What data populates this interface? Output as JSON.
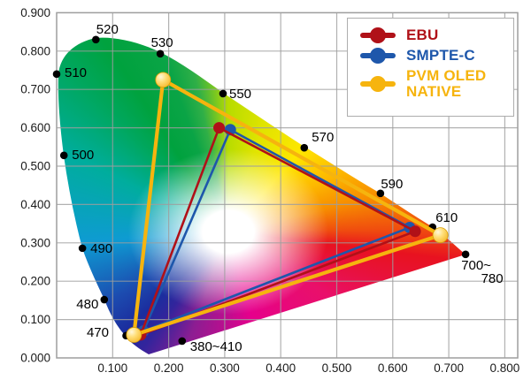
{
  "chart_data": {
    "type": "scatter",
    "title": "CIE 1931 xy chromaticity diagram with colour gamut triangles",
    "xlabel": "",
    "ylabel": "",
    "xlim": [
      0.0,
      0.823
    ],
    "ylim": [
      0.0,
      0.9
    ],
    "grid": true,
    "legend_position": "top-right",
    "x_ticks": [
      0.1,
      0.2,
      0.3,
      0.4,
      0.5,
      0.6,
      0.7,
      0.8
    ],
    "y_ticks": [
      0.0,
      0.1,
      0.2,
      0.3,
      0.4,
      0.5,
      0.6,
      0.7,
      0.8,
      0.9
    ],
    "x_tick_labels": [
      "0.100",
      "0.200",
      "0.300",
      "0.400",
      "0.500",
      "0.600",
      "0.700",
      "0.800"
    ],
    "y_tick_labels": [
      "0.000",
      "0.100",
      "0.200",
      "0.300",
      "0.400",
      "0.500",
      "0.600",
      "0.700",
      "0.800",
      "0.900"
    ],
    "series": [
      {
        "name": "EBU",
        "color": "#b01118",
        "marker": "circle",
        "closed": true,
        "points": [
          [
            0.64,
            0.33
          ],
          [
            0.29,
            0.6
          ],
          [
            0.15,
            0.06
          ]
        ]
      },
      {
        "name": "SMPTE-C",
        "color": "#1e57ab",
        "marker": "circle",
        "closed": true,
        "points": [
          [
            0.63,
            0.34
          ],
          [
            0.31,
            0.595
          ],
          [
            0.155,
            0.07
          ]
        ]
      },
      {
        "name": "PVM OLED NATIVE",
        "color": "#f6b40e",
        "marker": "ball",
        "closed": true,
        "points": [
          [
            0.685,
            0.32
          ],
          [
            0.19,
            0.725
          ],
          [
            0.138,
            0.06
          ]
        ]
      }
    ],
    "spectral_locus_points": [
      {
        "label": "380~410",
        "x": 0.224,
        "y": 0.044,
        "lines": [
          "380~410"
        ]
      },
      {
        "label": "470",
        "x": 0.124,
        "y": 0.058,
        "dot_hidden": true,
        "lines": [
          "470"
        ]
      },
      {
        "label": "480",
        "x": 0.085,
        "y": 0.152,
        "lines": [
          "480"
        ]
      },
      {
        "label": "490",
        "x": 0.046,
        "y": 0.286,
        "lines": [
          "490"
        ]
      },
      {
        "label": "500",
        "x": 0.013,
        "y": 0.528,
        "lines": [
          "500"
        ]
      },
      {
        "label": "510",
        "x": 0.0,
        "y": 0.74,
        "lines": [
          "510"
        ]
      },
      {
        "label": "520",
        "x": 0.07,
        "y": 0.83,
        "lines": [
          "520"
        ]
      },
      {
        "label": "530",
        "x": 0.185,
        "y": 0.793,
        "lines": [
          "530"
        ]
      },
      {
        "label": "550",
        "x": 0.297,
        "y": 0.689,
        "lines": [
          "550"
        ]
      },
      {
        "label": "570",
        "x": 0.442,
        "y": 0.548,
        "lines": [
          "570"
        ]
      },
      {
        "label": "590",
        "x": 0.578,
        "y": 0.429,
        "lines": [
          "590"
        ]
      },
      {
        "label": "610",
        "x": 0.671,
        "y": 0.341,
        "lines": [
          "610"
        ]
      },
      {
        "label": "700~780",
        "x": 0.73,
        "y": 0.27,
        "lines": [
          "700~",
          "780"
        ]
      }
    ]
  },
  "legend": {
    "items": [
      {
        "id": "ebu",
        "color": "#b01118",
        "lines": [
          "EBU"
        ]
      },
      {
        "id": "smpte-c",
        "color": "#1e57ab",
        "lines": [
          "SMPTE-C"
        ]
      },
      {
        "id": "pvm-oled-native",
        "color": "#f6b40e",
        "lines": [
          "PVM OLED",
          "NATIVE"
        ]
      }
    ]
  },
  "colors": {
    "grid": "#9e9e9e",
    "frame": "#9e9e9e",
    "locus_dot": "#000000",
    "tick_text": "#1a1a1a"
  }
}
